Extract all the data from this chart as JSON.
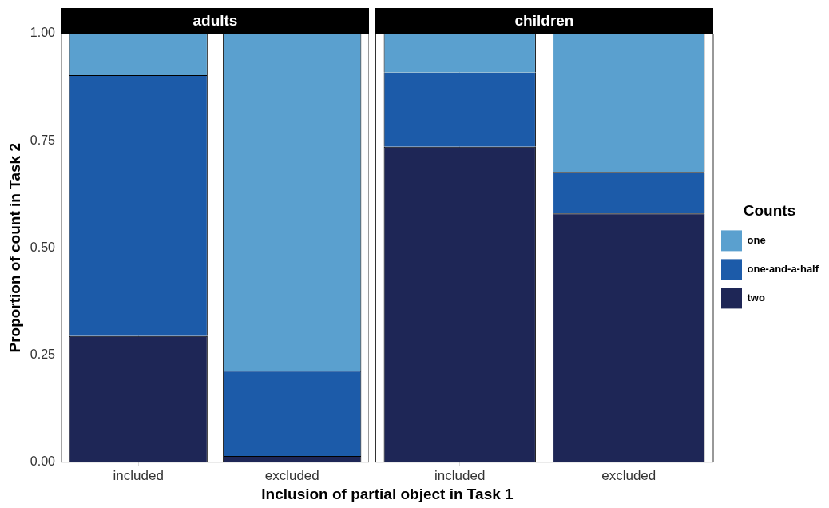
{
  "chart_data": [
    {
      "type": "bar",
      "title": "adults",
      "stacked": true,
      "categories": [
        "included",
        "excluded"
      ],
      "xlabel": "Inclusion of partial object in Task 1",
      "ylabel": "Proportion of count in Task 2",
      "ylim": [
        0,
        1
      ],
      "yticks": [
        {
          "value": 0,
          "label": "0.00"
        },
        {
          "value": 0.25,
          "label": "0.25"
        },
        {
          "value": 0.5,
          "label": "0.50"
        },
        {
          "value": 0.75,
          "label": "0.75"
        },
        {
          "value": 1,
          "label": "1.00"
        }
      ],
      "grid": true,
      "series": [
        {
          "color": "#1e2656",
          "values": [
            0.294,
            0.014
          ]
        },
        {
          "color": "#1c5ba9",
          "values": [
            0.609,
            0.199
          ]
        },
        {
          "color": "#5aa0cf",
          "values": [
            0.097,
            0.787
          ]
        }
      ]
    },
    {
      "type": "bar",
      "title": "children",
      "stacked": true,
      "categories": [
        "included",
        "excluded"
      ],
      "ylim": [
        0,
        1
      ],
      "yticks": [
        0,
        0.25,
        0.5,
        0.75,
        1
      ],
      "grid": true,
      "tick_labels": "x",
      "legend": "right",
      "legend_title": "Counts",
      "series": [
        {
          "name": "two",
          "color": "#1e2656",
          "values": [
            0.736,
            0.58
          ]
        },
        {
          "name": "one-and-a-half",
          "color": "#1c5ba9",
          "values": [
            0.173,
            0.097
          ]
        },
        {
          "name": "one",
          "color": "#5aa0cf",
          "values": [
            0.091,
            0.323
          ]
        }
      ]
    }
  ]
}
